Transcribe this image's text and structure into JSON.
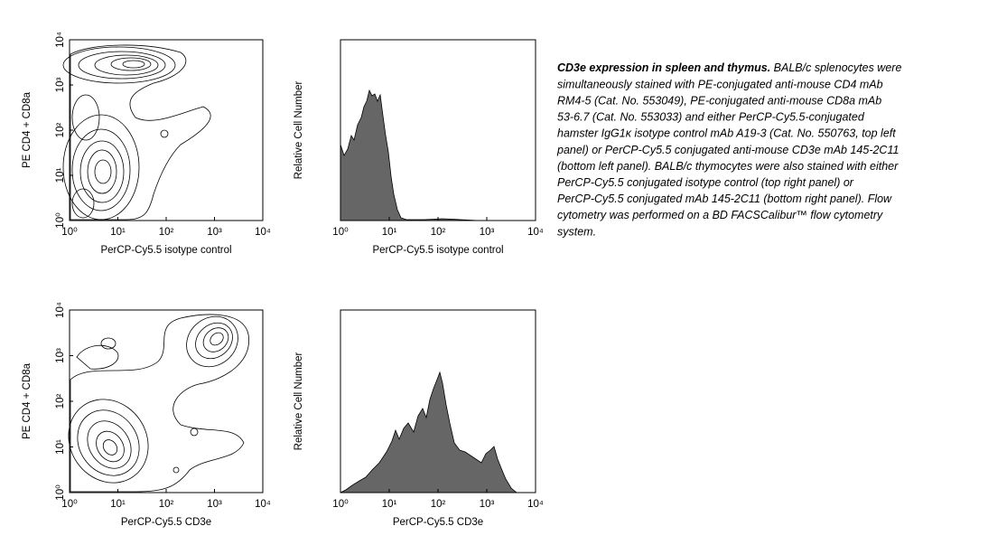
{
  "panels": [
    {
      "xlabel": "PerCP-Cy5.5 isotype control",
      "ylabel": "PE CD4 + CD8a",
      "xticks": [
        {
          "value": 1,
          "label": "10⁰"
        },
        {
          "value": 10,
          "label": "10¹"
        },
        {
          "value": 100,
          "label": "10²"
        },
        {
          "value": 1000,
          "label": "10³"
        },
        {
          "value": 10000,
          "label": "10⁴"
        }
      ],
      "yticks": [
        {
          "value": 1,
          "label": "10⁰"
        },
        {
          "value": 10,
          "label": "10¹"
        },
        {
          "value": 100,
          "label": "10²"
        },
        {
          "value": 1000,
          "label": "10³"
        },
        {
          "value": 10000,
          "label": "10⁴"
        }
      ]
    },
    {
      "xlabel": "PerCP-Cy5.5 isotype control",
      "ylabel": "Relative Cell Number",
      "xticks": [
        {
          "value": 1,
          "label": "10⁰"
        },
        {
          "value": 10,
          "label": "10¹"
        },
        {
          "value": 100,
          "label": "10²"
        },
        {
          "value": 1000,
          "label": "10³"
        },
        {
          "value": 10000,
          "label": "10⁴"
        }
      ]
    },
    {
      "xlabel": "PerCP-Cy5.5 CD3e",
      "ylabel": "PE CD4 + CD8a",
      "xticks": [
        {
          "value": 1,
          "label": "10⁰"
        },
        {
          "value": 10,
          "label": "10¹"
        },
        {
          "value": 100,
          "label": "10²"
        },
        {
          "value": 1000,
          "label": "10³"
        },
        {
          "value": 10000,
          "label": "10⁴"
        }
      ],
      "yticks": [
        {
          "value": 1,
          "label": "10⁰"
        },
        {
          "value": 10,
          "label": "10¹"
        },
        {
          "value": 100,
          "label": "10²"
        },
        {
          "value": 1000,
          "label": "10³"
        },
        {
          "value": 10000,
          "label": "10⁴"
        }
      ]
    },
    {
      "xlabel": "PerCP-Cy5.5 CD3e",
      "ylabel": "Relative Cell Number",
      "xticks": [
        {
          "value": 1,
          "label": "10⁰"
        },
        {
          "value": 10,
          "label": "10¹"
        },
        {
          "value": 100,
          "label": "10²"
        },
        {
          "value": 1000,
          "label": "10³"
        },
        {
          "value": 10000,
          "label": "10⁴"
        }
      ]
    }
  ],
  "caption": {
    "title": "CD3e expression in spleen and thymus.",
    "lines": [
      " BALB/c splenocytes were",
      "simultaneously stained with PE-conjugated anti-mouse CD4 mAb",
      "RM4-5 (Cat. No. 553049), PE-conjugated anti-mouse CD8a mAb",
      "53-6.7 (Cat. No. 553033) and either PerCP-Cy5.5-conjugated",
      "hamster IgG1κ isotype control mAb A19-3 (Cat. No. 550763, top left",
      "panel) or PerCP-Cy5.5 conjugated anti-mouse CD3e mAb 145-2C11",
      "(bottom left panel). BALB/c thymocytes were also stained with either",
      "PerCP-Cy5.5 conjugated isotype control (top right panel) or",
      "PerCP-Cy5.5 conjugated mAb 145-2C11 (bottom right panel). Flow",
      "cytometry was performed on a BD FACSCalibur™ flow cytometry",
      "system."
    ]
  }
}
